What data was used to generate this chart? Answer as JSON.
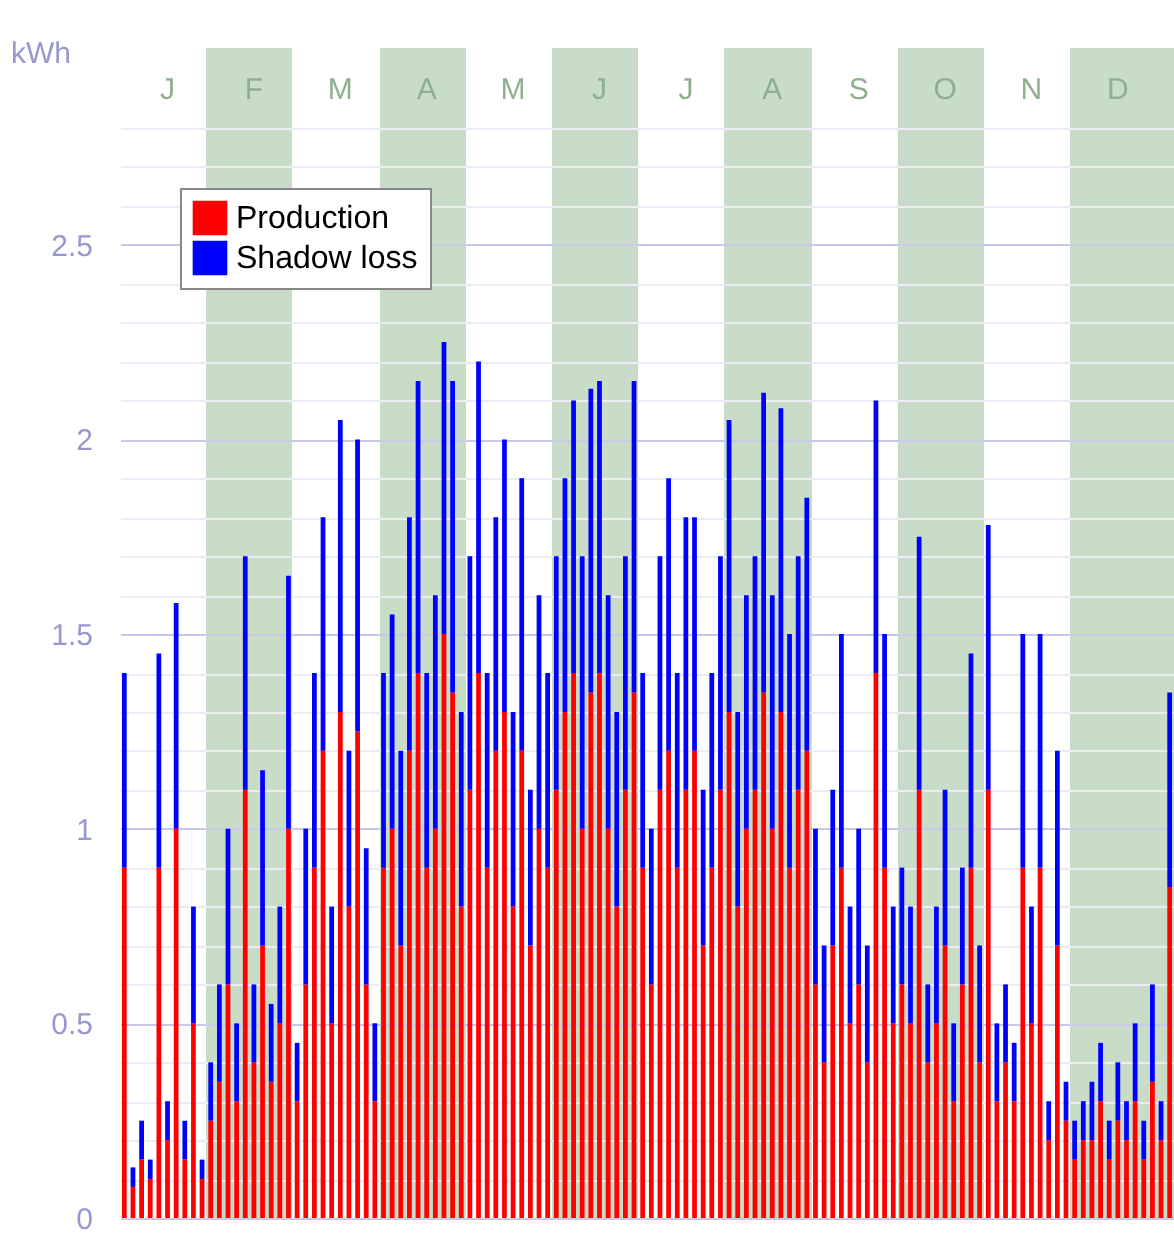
{
  "chart_data": {
    "type": "bar",
    "stacked": true,
    "ylabel": "kWh",
    "legend": "top left",
    "grid": "y",
    "categories": [
      null,
      null,
      null,
      null,
      null,
      "J",
      null,
      null,
      null,
      null,
      null,
      null,
      null,
      null,
      null,
      "F",
      null,
      null,
      null,
      null,
      null,
      null,
      null,
      null,
      null,
      "M",
      null,
      null,
      null,
      null,
      null,
      null,
      null,
      null,
      null,
      "A",
      null,
      null,
      null,
      null,
      null,
      null,
      null,
      null,
      null,
      "M",
      null,
      null,
      null,
      null,
      null,
      null,
      null,
      null,
      null,
      "J",
      null,
      null,
      null,
      null,
      null,
      null,
      null,
      null,
      null,
      "J",
      null,
      null,
      null,
      null,
      null,
      null,
      null,
      null,
      null,
      "A",
      null,
      null,
      null,
      null,
      null,
      null,
      null,
      null,
      null,
      "S",
      null,
      null,
      null,
      null,
      null,
      null,
      null,
      null,
      null,
      "O",
      null,
      null,
      null,
      null,
      null,
      null,
      null,
      null,
      null,
      "N",
      null,
      null,
      null,
      null,
      null,
      null,
      null,
      null,
      null,
      "D",
      null,
      null,
      null,
      null,
      null,
      null
    ],
    "ylim": [
      0,
      2.8
    ],
    "yticks": [
      0,
      {
        "value": 0.1,
        "label": null
      },
      {
        "value": 0.2,
        "label": null
      },
      {
        "value": 0.3,
        "label": null
      },
      {
        "value": 0.4,
        "label": null
      },
      0.5,
      {
        "value": 0.6,
        "label": null
      },
      {
        "value": 0.7,
        "label": null
      },
      {
        "value": 0.8,
        "label": null
      },
      {
        "value": 0.9,
        "label": null
      },
      1,
      {
        "value": 1.1,
        "label": null
      },
      {
        "value": 1.2,
        "label": null
      },
      {
        "value": 1.3,
        "label": null
      },
      {
        "value": 1.4,
        "label": null
      },
      1.5,
      {
        "value": 1.6,
        "label": null
      },
      {
        "value": 1.7,
        "label": null
      },
      {
        "value": 1.8,
        "label": null
      },
      {
        "value": 1.9,
        "label": null
      },
      2,
      {
        "value": 2.1,
        "label": null
      },
      {
        "value": 2.2,
        "label": null
      },
      {
        "value": 2.3,
        "label": null
      },
      {
        "value": 2.4,
        "label": null
      },
      2.5,
      {
        "value": 2.6,
        "label": null
      },
      {
        "value": 2.7,
        "label": null
      },
      {
        "value": 2.8,
        "label": null
      }
    ],
    "series": [
      {
        "name": "Production",
        "color": "#ff0000",
        "values": [
          0.9,
          0.08,
          0.15,
          0.1,
          0.9,
          0.2,
          1.0,
          0.15,
          0.5,
          0.1,
          0.25,
          0.35,
          0.6,
          0.3,
          1.1,
          0.4,
          0.7,
          0.35,
          0.5,
          1.0,
          0.3,
          0.6,
          0.9,
          1.2,
          0.5,
          1.3,
          0.8,
          1.25,
          0.6,
          0.3,
          0.9,
          1.0,
          0.7,
          1.2,
          1.4,
          0.9,
          1.0,
          1.5,
          1.35,
          0.8,
          1.1,
          1.4,
          0.9,
          1.2,
          1.3,
          0.8,
          1.2,
          0.7,
          1.0,
          0.9,
          1.1,
          1.3,
          1.4,
          1.0,
          1.35,
          1.4,
          1.0,
          0.8,
          1.1,
          1.35,
          0.9,
          0.6,
          1.1,
          1.2,
          0.9,
          1.1,
          1.2,
          0.7,
          0.9,
          1.1,
          1.3,
          0.8,
          1.0,
          1.1,
          1.35,
          1.0,
          1.3,
          0.9,
          1.1,
          1.2,
          0.6,
          0.4,
          0.7,
          0.9,
          0.5,
          0.6,
          0.4,
          1.4,
          0.9,
          0.5,
          0.6,
          0.5,
          1.1,
          0.4,
          0.5,
          0.7,
          0.3,
          0.6,
          0.9,
          0.4,
          1.1,
          0.3,
          0.4,
          0.3,
          0.9,
          0.5,
          0.9,
          0.2,
          0.7,
          0.25,
          0.15,
          0.2,
          0.2,
          0.3,
          0.15,
          0.25,
          0.2,
          0.3,
          0.15,
          0.35,
          0.2,
          0.85
        ]
      },
      {
        "name": "Shadow loss",
        "color": "#0000ff",
        "values": [
          0.5,
          0.05,
          0.1,
          0.05,
          0.55,
          0.1,
          0.58,
          0.1,
          0.3,
          0.05,
          0.15,
          0.25,
          0.4,
          0.2,
          0.6,
          0.2,
          0.45,
          0.2,
          0.3,
          0.65,
          0.15,
          0.4,
          0.5,
          0.6,
          0.3,
          0.75,
          0.4,
          0.75,
          0.35,
          0.2,
          0.5,
          0.55,
          0.5,
          0.6,
          0.75,
          0.5,
          0.6,
          0.75,
          0.8,
          0.5,
          0.6,
          0.8,
          0.5,
          0.6,
          0.7,
          0.5,
          0.7,
          0.4,
          0.6,
          0.5,
          0.6,
          0.6,
          0.7,
          0.7,
          0.78,
          0.75,
          0.6,
          0.5,
          0.6,
          0.8,
          0.5,
          0.4,
          0.6,
          0.7,
          0.5,
          0.7,
          0.6,
          0.4,
          0.5,
          0.6,
          0.75,
          0.5,
          0.6,
          0.6,
          0.77,
          0.6,
          0.78,
          0.6,
          0.6,
          0.65,
          0.4,
          0.3,
          0.4,
          0.6,
          0.3,
          0.4,
          0.3,
          0.7,
          0.6,
          0.3,
          0.3,
          0.3,
          0.65,
          0.2,
          0.3,
          0.4,
          0.2,
          0.3,
          0.55,
          0.3,
          0.68,
          0.2,
          0.2,
          0.15,
          0.6,
          0.3,
          0.6,
          0.1,
          0.5,
          0.1,
          0.1,
          0.1,
          0.15,
          0.15,
          0.1,
          0.15,
          0.1,
          0.2,
          0.1,
          0.25,
          0.1,
          0.5
        ]
      }
    ]
  }
}
